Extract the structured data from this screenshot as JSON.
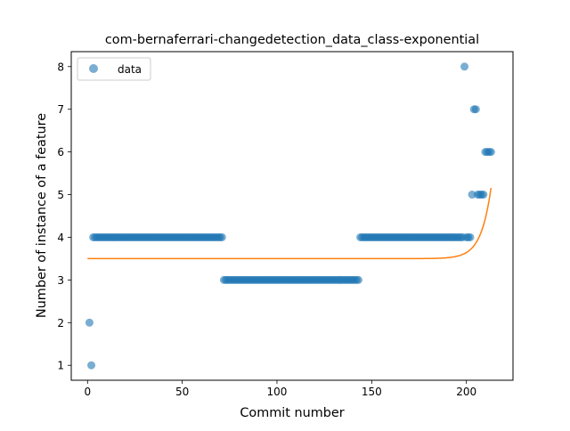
{
  "chart_data": {
    "type": "scatter",
    "title": "com-bernaferrari-changedetection_data_class-exponential",
    "xlabel": "Commit number",
    "ylabel": "Number of instance of a feature",
    "xlim": [
      -8.6,
      224.6
    ],
    "ylim": [
      0.65,
      8.35
    ],
    "xticks": [
      0,
      50,
      100,
      150,
      200
    ],
    "yticks": [
      1,
      2,
      3,
      4,
      5,
      6,
      7,
      8
    ],
    "grid": false,
    "legend": {
      "placement": "top-left",
      "entries": [
        {
          "label": "data"
        }
      ]
    },
    "colors": {
      "data": "#1f77b4",
      "fit": "#ff7f0e"
    },
    "series": [
      {
        "name": "data",
        "kind": "scatter",
        "segments": [
          {
            "x": [
              1
            ],
            "y": 2
          },
          {
            "x": [
              2
            ],
            "y": 1
          },
          {
            "x_from": 3,
            "x_to": 71,
            "step": 1,
            "y": 4
          },
          {
            "x_from": 72,
            "x_to": 143,
            "step": 1,
            "y": 3
          },
          {
            "x_from": 144,
            "x_to": 198,
            "step": 1,
            "y": 4
          },
          {
            "x": [
              199
            ],
            "y": 8
          },
          {
            "x": [
              200,
              201,
              202
            ],
            "y": 4
          },
          {
            "x": [
              203
            ],
            "y": 5
          },
          {
            "x": [
              204,
              205
            ],
            "y": 7
          },
          {
            "x": [
              206,
              207,
              208,
              209
            ],
            "y": 5
          },
          {
            "x": [
              210,
              211,
              212,
              213
            ],
            "y": 6
          }
        ]
      },
      {
        "kind": "line",
        "model": "exponential",
        "params": {
          "a": 3.5,
          "b": 5.8e-18,
          "c": 0.1887
        },
        "x_range": [
          0,
          213
        ]
      }
    ]
  }
}
